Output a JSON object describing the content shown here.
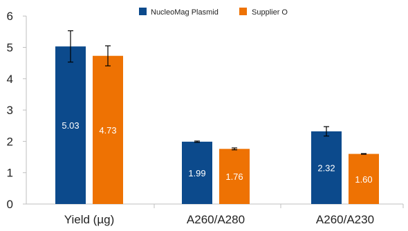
{
  "chart_data": {
    "type": "bar",
    "categories": [
      "Yield (µg)",
      "A260/A280",
      "A260/A230"
    ],
    "series": [
      {
        "name": "NucleoMag Plasmid",
        "color": "#0c4a8c",
        "values": [
          5.03,
          1.99,
          2.32
        ],
        "value_labels": [
          "5.03",
          "1.99",
          "2.32"
        ],
        "errors": [
          0.5,
          0.02,
          0.15
        ]
      },
      {
        "name": "Supplier O",
        "color": "#ee7203",
        "values": [
          4.73,
          1.76,
          1.6
        ],
        "value_labels": [
          "4.73",
          "1.76",
          "1.60"
        ],
        "errors": [
          0.32,
          0.03,
          0.01
        ]
      }
    ],
    "y_ticks": [
      "0",
      "1",
      "2",
      "3",
      "4",
      "5",
      "6"
    ],
    "ylim": [
      0,
      6
    ],
    "grid": false,
    "legend_position": "top-center"
  }
}
